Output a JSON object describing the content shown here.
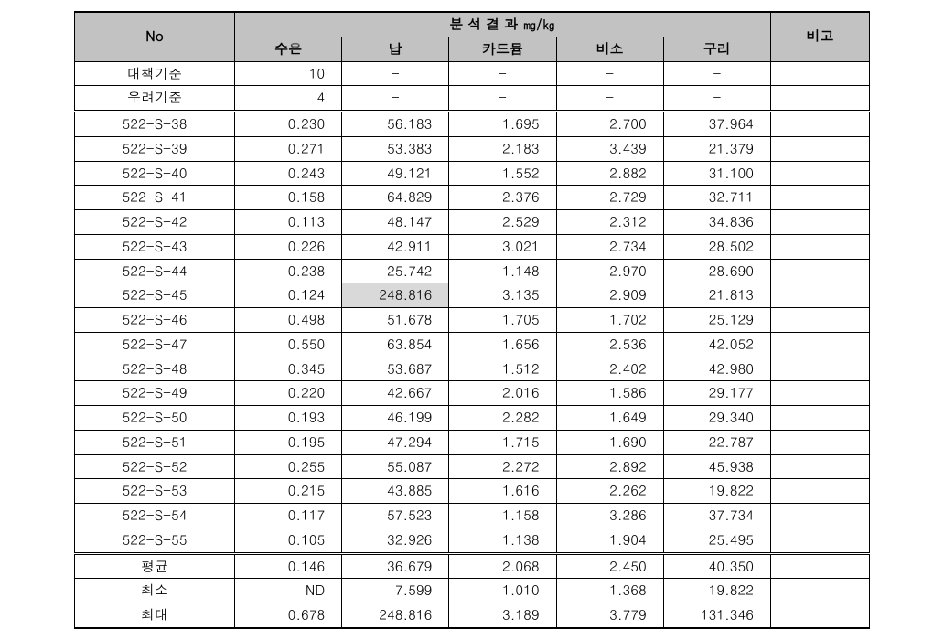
{
  "header": {
    "no": "No",
    "group": "분 석 결 과 ㎎/㎏",
    "metals": [
      "수은",
      "납",
      "카드뮴",
      "비소",
      "구리"
    ],
    "note": "비고"
  },
  "criteria": [
    {
      "label": "대책기준",
      "vals": [
        "10",
        "-",
        "-",
        "-",
        "-"
      ],
      "note": ""
    },
    {
      "label": "우려기준",
      "vals": [
        "4",
        "-",
        "-",
        "-",
        "-"
      ],
      "note": ""
    }
  ],
  "rows": [
    {
      "label": "522-S-38",
      "vals": [
        "0.230",
        "56.183",
        "1.695",
        "2.700",
        "37.964"
      ],
      "note": ""
    },
    {
      "label": "522-S-39",
      "vals": [
        "0.271",
        "53.383",
        "2.183",
        "3.439",
        "21.379"
      ],
      "note": ""
    },
    {
      "label": "522-S-40",
      "vals": [
        "0.243",
        "49.121",
        "1.552",
        "2.882",
        "31.100"
      ],
      "note": ""
    },
    {
      "label": "522-S-41",
      "vals": [
        "0.158",
        "64.829",
        "2.376",
        "2.729",
        "32.711"
      ],
      "note": ""
    },
    {
      "label": "522-S-42",
      "vals": [
        "0.113",
        "48.147",
        "2.529",
        "2.312",
        "34.836"
      ],
      "note": ""
    },
    {
      "label": "522-S-43",
      "vals": [
        "0.226",
        "42.911",
        "3.021",
        "2.734",
        "28.502"
      ],
      "note": ""
    },
    {
      "label": "522-S-44",
      "vals": [
        "0.238",
        "25.742",
        "1.148",
        "2.970",
        "28.690"
      ],
      "note": ""
    },
    {
      "label": "522-S-45",
      "vals": [
        "0.124",
        "248.816",
        "3.135",
        "2.909",
        "21.813"
      ],
      "note": "",
      "highlight": [
        1
      ]
    },
    {
      "label": "522-S-46",
      "vals": [
        "0.498",
        "51.678",
        "1.705",
        "1.702",
        "25.129"
      ],
      "note": ""
    },
    {
      "label": "522-S-47",
      "vals": [
        "0.550",
        "63.854",
        "1.656",
        "2.536",
        "42.052"
      ],
      "note": ""
    },
    {
      "label": "522-S-48",
      "vals": [
        "0.345",
        "53.687",
        "1.512",
        "2.402",
        "42.980"
      ],
      "note": ""
    },
    {
      "label": "522-S-49",
      "vals": [
        "0.220",
        "42.667",
        "2.016",
        "1.586",
        "29.177"
      ],
      "note": ""
    },
    {
      "label": "522-S-50",
      "vals": [
        "0.193",
        "46.199",
        "2.282",
        "1.649",
        "29.340"
      ],
      "note": ""
    },
    {
      "label": "522-S-51",
      "vals": [
        "0.195",
        "47.294",
        "1.715",
        "1.690",
        "22.787"
      ],
      "note": ""
    },
    {
      "label": "522-S-52",
      "vals": [
        "0.255",
        "55.087",
        "2.272",
        "2.892",
        "45.938"
      ],
      "note": ""
    },
    {
      "label": "522-S-53",
      "vals": [
        "0.215",
        "43.885",
        "1.616",
        "2.262",
        "19.822"
      ],
      "note": ""
    },
    {
      "label": "522-S-54",
      "vals": [
        "0.117",
        "57.523",
        "1.158",
        "3.286",
        "37.734"
      ],
      "note": ""
    },
    {
      "label": "522-S-55",
      "vals": [
        "0.105",
        "32.926",
        "1.138",
        "1.904",
        "25.495"
      ],
      "note": ""
    }
  ],
  "summary": [
    {
      "label": "평균",
      "vals": [
        "0.146",
        "36.679",
        "2.068",
        "2.450",
        "40.350"
      ],
      "note": ""
    },
    {
      "label": "최소",
      "vals": [
        "ND",
        "7.599",
        "1.010",
        "1.368",
        "19.822"
      ],
      "note": ""
    },
    {
      "label": "최대",
      "vals": [
        "0.678",
        "248.816",
        "3.189",
        "3.779",
        "131.346"
      ],
      "note": ""
    }
  ]
}
